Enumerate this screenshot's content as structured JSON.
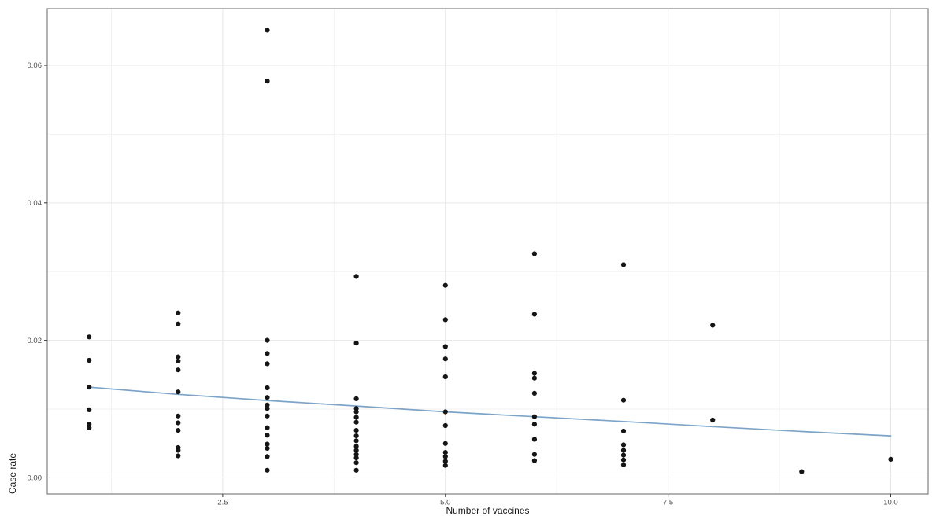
{
  "colors": {
    "background": "#ffffff",
    "panel_background": "#ffffff",
    "panel_border": "#7f7f7f",
    "grid_major": "#e6e6e6",
    "grid_minor": "#f2f2f2",
    "tick_mark": "#333333",
    "tick_label": "#4d4d4d",
    "axis_title": "#1a1a1a",
    "point": "#151515",
    "trend_line": "#7ca3c8"
  },
  "chart_data": {
    "type": "scatter",
    "title": "",
    "xlabel": "Number of vaccines",
    "ylabel": "Case rate",
    "xlim": [
      0.53,
      10.42
    ],
    "ylim": [
      -0.00235,
      0.06824
    ],
    "grid": true,
    "legend": false,
    "x_major_ticks": [
      2.5,
      5.0,
      7.5,
      10.0
    ],
    "x_tick_labels": [
      "2.5",
      "5.0",
      "7.5",
      "10.0"
    ],
    "x_minor_ticks": [
      1.25,
      3.75,
      6.25,
      8.75
    ],
    "y_major_ticks": [
      0.0,
      0.02,
      0.04,
      0.06
    ],
    "y_tick_labels": [
      "0.00",
      "0.02",
      "0.04",
      "0.06"
    ],
    "y_minor_ticks": [
      0.01,
      0.03,
      0.05
    ],
    "points": [
      [
        1,
        0.0205
      ],
      [
        1,
        0.0171
      ],
      [
        1,
        0.0132
      ],
      [
        1,
        0.0099
      ],
      [
        1,
        0.0078
      ],
      [
        1,
        0.0073
      ],
      [
        2,
        0.024
      ],
      [
        2,
        0.0224
      ],
      [
        2,
        0.0176
      ],
      [
        2,
        0.017
      ],
      [
        2,
        0.0157
      ],
      [
        2,
        0.0125
      ],
      [
        2,
        0.009
      ],
      [
        2,
        0.008
      ],
      [
        2,
        0.0069
      ],
      [
        2,
        0.0044
      ],
      [
        2,
        0.004
      ],
      [
        2,
        0.0032
      ],
      [
        3,
        0.0651
      ],
      [
        3,
        0.0577
      ],
      [
        3,
        0.02
      ],
      [
        3,
        0.0181
      ],
      [
        3,
        0.0166
      ],
      [
        3,
        0.0131
      ],
      [
        3,
        0.0117
      ],
      [
        3,
        0.0106
      ],
      [
        3,
        0.0101
      ],
      [
        3,
        0.009
      ],
      [
        3,
        0.0073
      ],
      [
        3,
        0.0062
      ],
      [
        3,
        0.0049
      ],
      [
        3,
        0.0043
      ],
      [
        3,
        0.0031
      ],
      [
        3,
        0.0011
      ],
      [
        4,
        0.0293
      ],
      [
        4,
        0.0196
      ],
      [
        4,
        0.0115
      ],
      [
        4,
        0.0101
      ],
      [
        4,
        0.0096
      ],
      [
        4,
        0.0088
      ],
      [
        4,
        0.0081
      ],
      [
        4,
        0.0069
      ],
      [
        4,
        0.0061
      ],
      [
        4,
        0.0054
      ],
      [
        4,
        0.0046
      ],
      [
        4,
        0.004
      ],
      [
        4,
        0.0034
      ],
      [
        4,
        0.0029
      ],
      [
        4,
        0.0022
      ],
      [
        4,
        0.0011
      ],
      [
        5,
        0.028
      ],
      [
        5,
        0.023
      ],
      [
        5,
        0.0191
      ],
      [
        5,
        0.0173
      ],
      [
        5,
        0.0147
      ],
      [
        5,
        0.0096
      ],
      [
        5,
        0.0076
      ],
      [
        5,
        0.005
      ],
      [
        5,
        0.0037
      ],
      [
        5,
        0.0031
      ],
      [
        5,
        0.0024
      ],
      [
        5,
        0.0018
      ],
      [
        6,
        0.0326
      ],
      [
        6,
        0.0238
      ],
      [
        6,
        0.0152
      ],
      [
        6,
        0.0145
      ],
      [
        6,
        0.0123
      ],
      [
        6,
        0.0089
      ],
      [
        6,
        0.0078
      ],
      [
        6,
        0.0056
      ],
      [
        6,
        0.0034
      ],
      [
        6,
        0.0025
      ],
      [
        7,
        0.031
      ],
      [
        7,
        0.0113
      ],
      [
        7,
        0.0068
      ],
      [
        7,
        0.0048
      ],
      [
        7,
        0.004
      ],
      [
        7,
        0.0033
      ],
      [
        7,
        0.0026
      ],
      [
        7,
        0.0019
      ],
      [
        8,
        0.0222
      ],
      [
        8,
        0.0084
      ],
      [
        9,
        0.0009
      ],
      [
        10,
        0.0027
      ]
    ],
    "trend": {
      "name": "smoothed-trend",
      "points": [
        [
          1,
          0.0132
        ],
        [
          2,
          0.01215
        ],
        [
          3,
          0.01125
        ],
        [
          4,
          0.01045
        ],
        [
          5,
          0.0096
        ],
        [
          6,
          0.0089
        ],
        [
          7,
          0.0082
        ],
        [
          8,
          0.00745
        ],
        [
          9,
          0.00675
        ],
        [
          10,
          0.0061
        ]
      ]
    }
  }
}
